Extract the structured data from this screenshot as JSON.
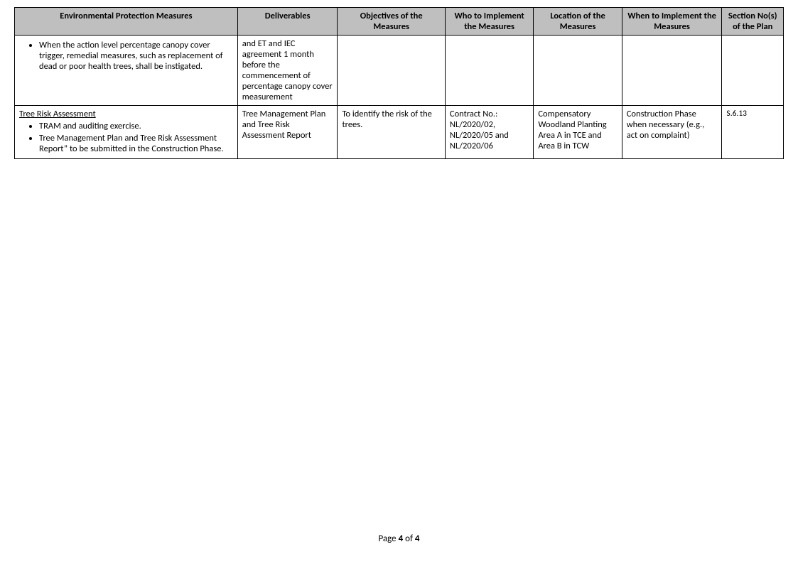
{
  "table": {
    "headers": [
      "Environmental Protection Measures",
      "Deliverables",
      "Objectives of the Measures",
      "Who to Implement the Measures",
      "Location of the Measures",
      "When to Implement the Measures",
      "Section No(s) of the Plan"
    ],
    "row1": {
      "bullet1": "When the action level percentage canopy cover trigger, remedial measures, such as replacement of dead or poor health trees, shall be instigated.",
      "deliverables": "and ET and IEC agreement 1 month before the commencement of percentage canopy cover measurement"
    },
    "row2": {
      "title": "Tree Risk Assessment",
      "bullet1": "TRAM and auditing exercise.",
      "bullet2": "Tree Management Plan and Tree Risk Assessment Report” to be submitted in the Construction Phase.",
      "deliverables": "Tree Management Plan and Tree Risk Assessment Report",
      "objectives": "To identify the risk of the trees.",
      "who": "Contract No.: NL/2020/02, NL/2020/05 and NL/2020/06",
      "location": "Compensatory Woodland Planting Area A in TCE and Area B in TCW",
      "when": "Construction Phase when necessary (e.g., act on complaint)",
      "section": "S.6.13"
    }
  },
  "footer": {
    "prefix": "Page ",
    "current": "4",
    "of": " of ",
    "total": "4"
  }
}
